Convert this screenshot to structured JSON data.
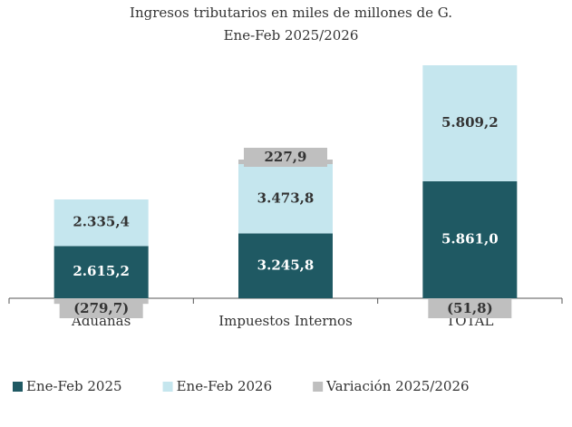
{
  "chart_data": {
    "type": "stacked_bar",
    "title": "Ingresos tributarios en miles de millones de G.",
    "subtitle": "Ene-Feb 2025/2026",
    "categories": [
      "Aduanas",
      "Impuestos Internos",
      "TOTAL"
    ],
    "series": [
      {
        "name": "Ene-Feb 2025",
        "color": "#1f5963",
        "values": [
          2615.2,
          3245.8,
          5861.0
        ],
        "value_labels": [
          "2.615,2",
          "3.245,8",
          "5.861,0"
        ]
      },
      {
        "name": "Ene-Feb 2026",
        "color": "#c5e6ee",
        "values": [
          2335.4,
          3473.8,
          5809.2
        ],
        "value_labels": [
          "2.335,4",
          "3.473,8",
          "5.809,2"
        ]
      },
      {
        "name": "Variación 2025/2026",
        "color": "#bfbfbf",
        "values": [
          -279.7,
          227.9,
          -51.8
        ],
        "value_labels": [
          "(279,7)",
          "227,9",
          "(51,8)"
        ]
      }
    ],
    "legend": "bottom"
  }
}
